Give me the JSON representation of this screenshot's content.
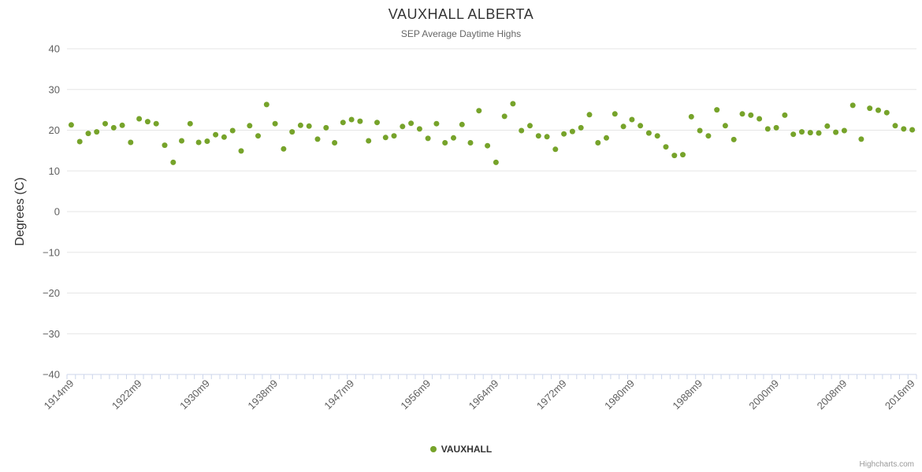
{
  "chart": {
    "title": "VAUXHALL ALBERTA",
    "subtitle": "SEP Average Daytime Highs",
    "y_axis_title": "Degrees (C)"
  },
  "legend": {
    "label": "VAUXHALL"
  },
  "credits": "Highcharts.com",
  "colors": {
    "series": "#76a32a",
    "grid": "#e6e6e6",
    "axis_line": "#ccd6eb",
    "tick": "#ccd6eb",
    "axis_label": "#606060"
  },
  "chart_data": {
    "type": "scatter",
    "title": "VAUXHALL ALBERTA",
    "subtitle": "SEP Average Daytime Highs",
    "xlabel": "",
    "ylabel": "Degrees (C)",
    "ylim": [
      -40,
      40
    ],
    "y_ticks": [
      40,
      30,
      20,
      10,
      0,
      -10,
      -20,
      -30,
      -40
    ],
    "grid": "horizontal",
    "legend_position": "bottom",
    "categories": [
      "1914m9",
      "1915m9",
      "1916m9",
      "1917m9",
      "1918m9",
      "1919m9",
      "1920m9",
      "1921m9",
      "1922m9",
      "1923m9",
      "1924m9",
      "1925m9",
      "1926m9",
      "1927m9",
      "1928m9",
      "1929m9",
      "1930m9",
      "1931m9",
      "1932m9",
      "1933m9",
      "1934m9",
      "1935m9",
      "1936m9",
      "1937m9",
      "1938m9",
      "1939m9",
      "1940m9",
      "1941m9",
      "1942m9",
      "1943m9",
      "1944m9",
      "1945m9",
      "1946m9",
      "1947m9",
      "1948m9",
      "1949m9",
      "1950m9",
      "1951m9",
      "1952m9",
      "1953m9",
      "1954m9",
      "1955m9",
      "1956m9",
      "1957m9",
      "1958m9",
      "1959m9",
      "1960m9",
      "1961m9",
      "1962m9",
      "1963m9",
      "1964m9",
      "1965m9",
      "1966m9",
      "1967m9",
      "1968m9",
      "1969m9",
      "1970m9",
      "1971m9",
      "1972m9",
      "1973m9",
      "1974m9",
      "1975m9",
      "1976m9",
      "1977m9",
      "1978m9",
      "1979m9",
      "1980m9",
      "1981m9",
      "1982m9",
      "1983m9",
      "1984m9",
      "1985m9",
      "1986m9",
      "1987m9",
      "1988m9",
      "1989m9",
      "1990m9",
      "1994m9",
      "1995m9",
      "1996m9",
      "1997m9",
      "1998m9",
      "1999m9",
      "2000m9",
      "2001m9",
      "2002m9",
      "2003m9",
      "2004m9",
      "2005m9",
      "2006m9",
      "2007m9",
      "2008m9",
      "2009m9",
      "2010m9",
      "2011m9",
      "2012m9",
      "2013m9",
      "2014m9",
      "2015m9",
      "2016m9"
    ],
    "x_tick_labels": [
      {
        "index": 0,
        "label": "1914m9"
      },
      {
        "index": 8,
        "label": "1922m9"
      },
      {
        "index": 16,
        "label": "1930m9"
      },
      {
        "index": 24,
        "label": "1938m9"
      },
      {
        "index": 33,
        "label": "1947m9"
      },
      {
        "index": 42,
        "label": "1956m9"
      },
      {
        "index": 50,
        "label": "1964m9"
      },
      {
        "index": 58,
        "label": "1972m9"
      },
      {
        "index": 66,
        "label": "1980m9"
      },
      {
        "index": 74,
        "label": "1988m9"
      },
      {
        "index": 83,
        "label": "2000m9"
      },
      {
        "index": 91,
        "label": "2008m9"
      },
      {
        "index": 99,
        "label": "2016m9"
      }
    ],
    "series": [
      {
        "name": "VAUXHALL",
        "color": "#76a32a",
        "values": [
          21.3,
          17.2,
          19.2,
          19.6,
          21.6,
          20.6,
          21.2,
          17.0,
          22.8,
          22.1,
          21.6,
          16.3,
          12.1,
          17.4,
          21.6,
          17.0,
          17.3,
          18.9,
          18.3,
          19.9,
          14.9,
          21.1,
          18.6,
          26.3,
          21.6,
          15.4,
          19.6,
          21.2,
          21.0,
          17.8,
          20.6,
          16.9,
          21.9,
          22.6,
          22.2,
          17.4,
          21.9,
          18.2,
          18.6,
          20.9,
          21.7,
          20.3,
          18.0,
          21.6,
          16.9,
          18.1,
          21.4,
          16.9,
          24.8,
          16.2,
          12.1,
          23.4,
          26.5,
          19.9,
          21.1,
          18.6,
          18.4,
          15.3,
          19.1,
          19.7,
          20.6,
          23.8,
          16.9,
          18.1,
          24.0,
          20.9,
          22.6,
          21.1,
          19.3,
          18.6,
          15.9,
          13.8,
          14.0,
          23.3,
          19.9,
          18.6,
          25.0,
          21.1,
          17.7,
          24.0,
          23.7,
          22.8,
          20.3,
          20.6,
          23.7,
          19.0,
          19.6,
          19.4,
          19.3,
          21.0,
          19.5,
          19.9,
          26.1,
          17.8,
          25.4,
          24.9,
          24.3,
          21.1,
          20.3,
          20.1
        ]
      }
    ]
  }
}
